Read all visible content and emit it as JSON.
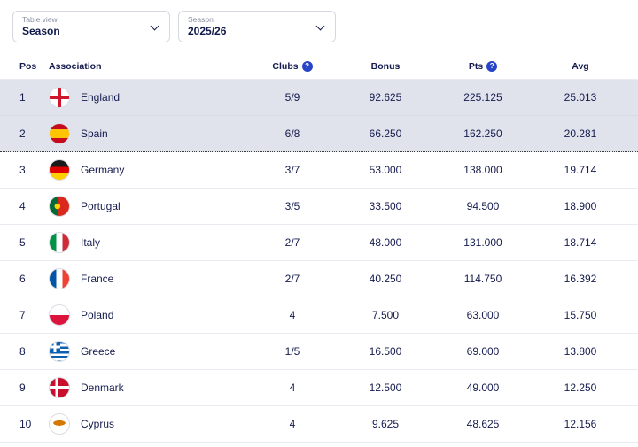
{
  "filters": {
    "table_view": {
      "label": "Table view",
      "value": "Season"
    },
    "season": {
      "label": "Season",
      "value": "2025/26"
    }
  },
  "icons": {
    "info": "?"
  },
  "table": {
    "headers": {
      "pos": "Pos",
      "association": "Association",
      "clubs": "Clubs",
      "bonus": "Bonus",
      "pts": "Pts",
      "avg": "Avg"
    },
    "rows": [
      {
        "pos": "1",
        "association": "England",
        "clubs": "5/9",
        "bonus": "92.625",
        "pts": "225.125",
        "avg": "25.013"
      },
      {
        "pos": "2",
        "association": "Spain",
        "clubs": "6/8",
        "bonus": "66.250",
        "pts": "162.250",
        "avg": "20.281"
      },
      {
        "pos": "3",
        "association": "Germany",
        "clubs": "3/7",
        "bonus": "53.000",
        "pts": "138.000",
        "avg": "19.714"
      },
      {
        "pos": "4",
        "association": "Portugal",
        "clubs": "3/5",
        "bonus": "33.500",
        "pts": "94.500",
        "avg": "18.900"
      },
      {
        "pos": "5",
        "association": "Italy",
        "clubs": "2/7",
        "bonus": "48.000",
        "pts": "131.000",
        "avg": "18.714"
      },
      {
        "pos": "6",
        "association": "France",
        "clubs": "2/7",
        "bonus": "40.250",
        "pts": "114.750",
        "avg": "16.392"
      },
      {
        "pos": "7",
        "association": "Poland",
        "clubs": "4",
        "bonus": "7.500",
        "pts": "63.000",
        "avg": "15.750"
      },
      {
        "pos": "8",
        "association": "Greece",
        "clubs": "1/5",
        "bonus": "16.500",
        "pts": "69.000",
        "avg": "13.800"
      },
      {
        "pos": "9",
        "association": "Denmark",
        "clubs": "4",
        "bonus": "12.500",
        "pts": "49.000",
        "avg": "12.250"
      },
      {
        "pos": "10",
        "association": "Cyprus",
        "clubs": "4",
        "bonus": "9.625",
        "pts": "48.625",
        "avg": "12.156"
      }
    ]
  }
}
